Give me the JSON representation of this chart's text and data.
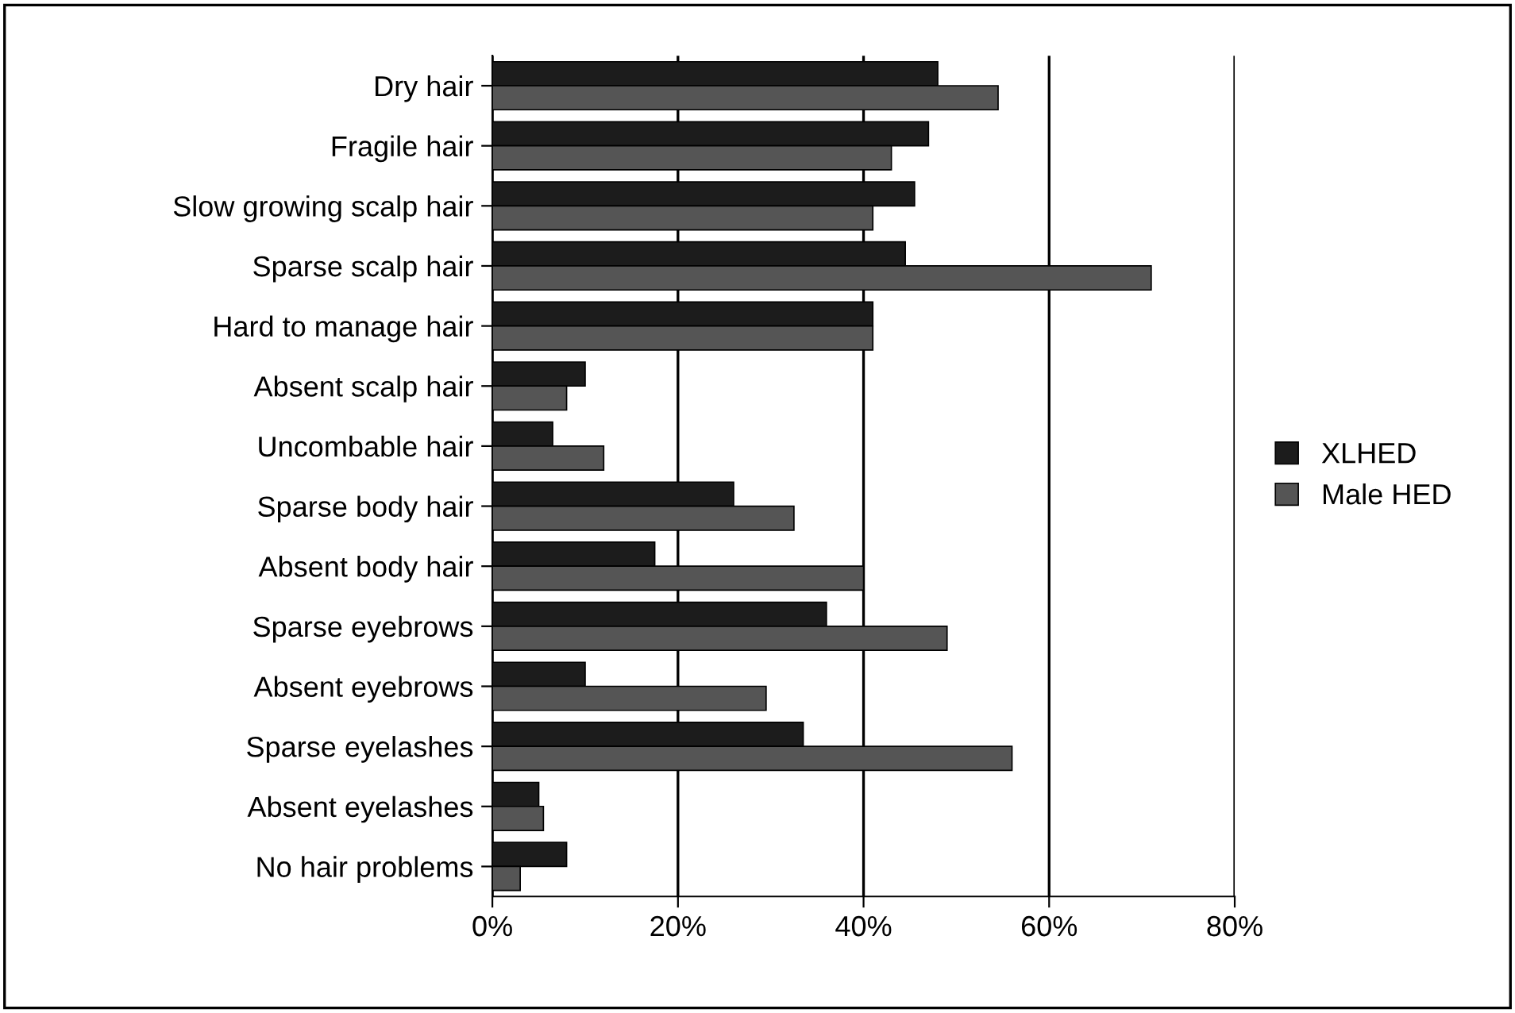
{
  "chart_data": {
    "type": "bar",
    "orientation": "horizontal",
    "categories": [
      "Dry hair",
      "Fragile hair",
      "Slow growing scalp hair",
      "Sparse scalp hair",
      "Hard to manage hair",
      "Absent scalp hair",
      "Uncombable hair",
      "Sparse body hair",
      "Absent body hair",
      "Sparse eyebrows",
      "Absent eyebrows",
      "Sparse eyelashes",
      "Absent eyelashes",
      "No hair problems"
    ],
    "series": [
      {
        "name": "XLHED",
        "color": "#1c1c1c",
        "values": [
          48,
          47,
          45.5,
          44.5,
          41,
          10,
          6.5,
          26,
          17.5,
          36,
          10,
          33.5,
          5,
          8
        ]
      },
      {
        "name": "Male HED",
        "color": "#555555",
        "values": [
          54.5,
          43,
          41,
          71,
          41,
          8,
          12,
          32.5,
          40,
          49,
          29.5,
          56,
          5.5,
          3
        ]
      }
    ],
    "xlim": [
      0,
      80
    ],
    "xticks": [
      {
        "value": 0,
        "label": "0%"
      },
      {
        "value": 20,
        "label": "20%"
      },
      {
        "value": 40,
        "label": "40%"
      },
      {
        "value": 60,
        "label": "60%"
      },
      {
        "value": 80,
        "label": "80%"
      }
    ],
    "grid": "x",
    "legend": "right"
  }
}
